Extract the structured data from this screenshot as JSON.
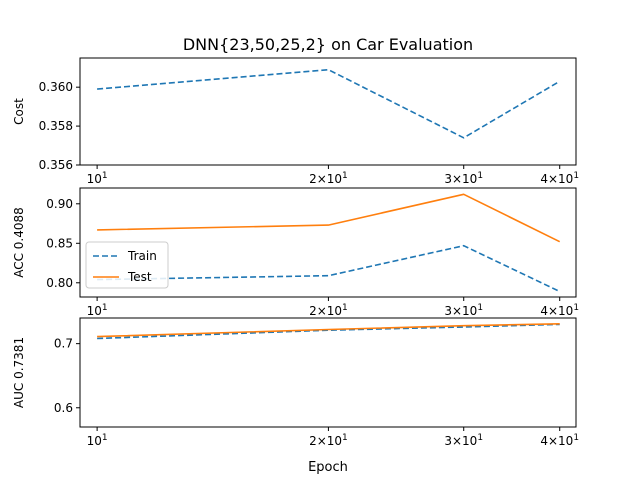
{
  "chart_data": {
    "title": "DNN{23,50,25,2} on Car Evaluation",
    "xlabel": "Epoch",
    "xscale": "log",
    "x": [
      10,
      20,
      30,
      40
    ],
    "xticks": [
      {
        "value": 10,
        "base": "10",
        "exp": "1",
        "coef": ""
      },
      {
        "value": 20,
        "base": "10",
        "exp": "1",
        "coef": "2×"
      },
      {
        "value": 30,
        "base": "10",
        "exp": "1",
        "coef": "3×"
      },
      {
        "value": 40,
        "base": "10",
        "exp": "1",
        "coef": "4×"
      }
    ],
    "legend": {
      "location": "center-left",
      "entries": [
        "Train",
        "Test"
      ]
    },
    "colors": {
      "train": "#1f77b4",
      "test": "#ff7f0e"
    },
    "subplots": [
      {
        "type": "line",
        "ylabel": "Cost",
        "ylim": [
          0.356,
          0.3615
        ],
        "yticks": [
          {
            "value": 0.356,
            "label": "0.356"
          },
          {
            "value": 0.358,
            "label": "0.358"
          },
          {
            "value": 0.36,
            "label": "0.360"
          }
        ],
        "series": [
          {
            "style": "dashed",
            "color": "#1f77b4",
            "values": [
              0.3599,
              0.3609,
              0.3574,
              0.3603
            ]
          }
        ]
      },
      {
        "type": "line",
        "ylabel": "ACC 0.4088",
        "ylim": [
          0.782,
          0.92
        ],
        "yticks": [
          {
            "value": 0.8,
            "label": "0.80"
          },
          {
            "value": 0.85,
            "label": "0.85"
          },
          {
            "value": 0.9,
            "label": "0.90"
          }
        ],
        "series": [
          {
            "name": "Train",
            "style": "dashed",
            "color": "#1f77b4",
            "values": [
              0.804,
              0.809,
              0.847,
              0.789
            ]
          },
          {
            "name": "Test",
            "style": "solid",
            "color": "#ff7f0e",
            "values": [
              0.867,
              0.873,
              0.912,
              0.852
            ]
          }
        ]
      },
      {
        "type": "line",
        "ylabel": "AUC 0.7381",
        "ylim": [
          0.57,
          0.74
        ],
        "yticks": [
          {
            "value": 0.6,
            "label": "0.6"
          },
          {
            "value": 0.7,
            "label": "0.7"
          }
        ],
        "series": [
          {
            "name": "Train",
            "style": "dashed",
            "color": "#1f77b4",
            "values": [
              0.708,
              0.721,
              0.726,
              0.73
            ]
          },
          {
            "name": "Test",
            "style": "solid",
            "color": "#ff7f0e",
            "values": [
              0.711,
              0.722,
              0.728,
              0.731
            ]
          }
        ]
      }
    ]
  }
}
